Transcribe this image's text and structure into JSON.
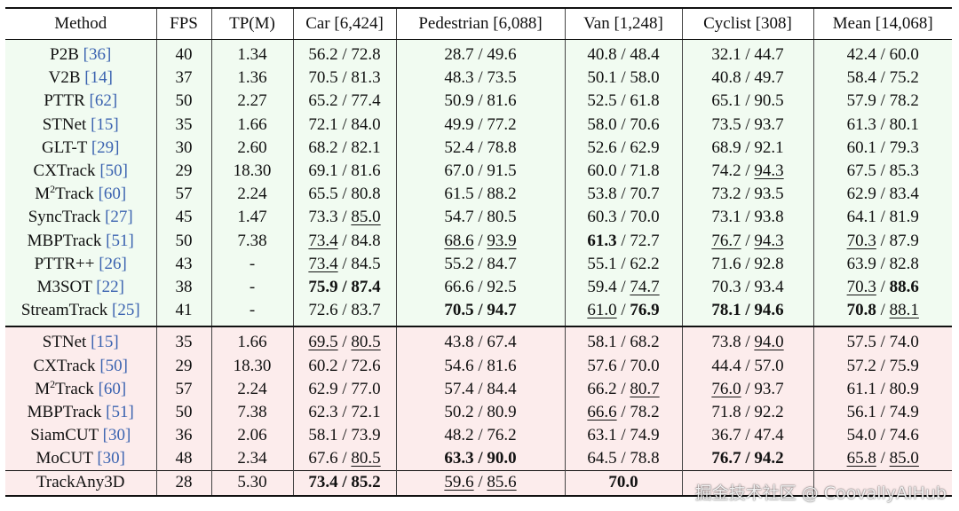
{
  "header": {
    "method": "Method",
    "fps": "FPS",
    "tp": "TP(M)",
    "car": "Car [6,424]",
    "pedestrian": "Pedestrian [6,088]",
    "van": "Van [1,248]",
    "cyclist": "Cyclist [308]",
    "mean": "Mean [14,068]"
  },
  "group1": [
    {
      "name": "P2B",
      "cite": "[36]",
      "fps": "40",
      "tp": "1.34",
      "car": [
        {
          "t": "56.2 / 72.8"
        }
      ],
      "ped": [
        {
          "t": "28.7 / 49.6"
        }
      ],
      "van": [
        {
          "t": "40.8 / 48.4"
        }
      ],
      "cyc": [
        {
          "t": "32.1 / 44.7"
        }
      ],
      "mean": [
        {
          "t": "42.4 / 60.0"
        }
      ]
    },
    {
      "name": "V2B",
      "cite": "[14]",
      "fps": "37",
      "tp": "1.36",
      "car": [
        {
          "t": "70.5 / 81.3"
        }
      ],
      "ped": [
        {
          "t": "48.3 / 73.5"
        }
      ],
      "van": [
        {
          "t": "50.1 / 58.0"
        }
      ],
      "cyc": [
        {
          "t": "40.8 / 49.7"
        }
      ],
      "mean": [
        {
          "t": "58.4 / 75.2"
        }
      ]
    },
    {
      "name": "PTTR",
      "cite": "[62]",
      "fps": "50",
      "tp": "2.27",
      "car": [
        {
          "t": "65.2 / 77.4"
        }
      ],
      "ped": [
        {
          "t": "50.9 / 81.6"
        }
      ],
      "van": [
        {
          "t": "52.5 / 61.8"
        }
      ],
      "cyc": [
        {
          "t": "65.1 / 90.5"
        }
      ],
      "mean": [
        {
          "t": "57.9 / 78.2"
        }
      ]
    },
    {
      "name": "STNet",
      "cite": "[15]",
      "fps": "35",
      "tp": "1.66",
      "car": [
        {
          "t": "72.1 / 84.0"
        }
      ],
      "ped": [
        {
          "t": "49.9 / 77.2"
        }
      ],
      "van": [
        {
          "t": "58.0 / 70.6"
        }
      ],
      "cyc": [
        {
          "t": "73.5 / 93.7"
        }
      ],
      "mean": [
        {
          "t": "61.3 / 80.1"
        }
      ]
    },
    {
      "name": "GLT-T",
      "cite": "[29]",
      "fps": "30",
      "tp": "2.60",
      "car": [
        {
          "t": "68.2 / 82.1"
        }
      ],
      "ped": [
        {
          "t": "52.4 / 78.8"
        }
      ],
      "van": [
        {
          "t": "52.6 / 62.9"
        }
      ],
      "cyc": [
        {
          "t": "68.9 / 92.1"
        }
      ],
      "mean": [
        {
          "t": "60.1 / 79.3"
        }
      ]
    },
    {
      "name": "CXTrack",
      "cite": "[50]",
      "fps": "29",
      "tp": "18.30",
      "car": [
        {
          "t": "69.1 / 81.6"
        }
      ],
      "ped": [
        {
          "t": "67.0 / 91.5"
        }
      ],
      "van": [
        {
          "t": "60.0 / 71.8"
        }
      ],
      "cyc": [
        {
          "t": "74.2 / "
        },
        {
          "t": "94.3",
          "s": "u"
        }
      ],
      "mean": [
        {
          "t": "67.5 / 85.3"
        }
      ]
    },
    {
      "name": "M",
      "sup": "2",
      "name2": "Track",
      "cite": "[60]",
      "fps": "57",
      "tp": "2.24",
      "car": [
        {
          "t": "65.5 / 80.8"
        }
      ],
      "ped": [
        {
          "t": "61.5 / 88.2"
        }
      ],
      "van": [
        {
          "t": "53.8 / 70.7"
        }
      ],
      "cyc": [
        {
          "t": "73.2 / 93.5"
        }
      ],
      "mean": [
        {
          "t": "62.9 / 83.4"
        }
      ]
    },
    {
      "name": "SyncTrack",
      "cite": "[27]",
      "fps": "45",
      "tp": "1.47",
      "car": [
        {
          "t": "73.3 / "
        },
        {
          "t": "85.0",
          "s": "u"
        }
      ],
      "ped": [
        {
          "t": "54.7 / 80.5"
        }
      ],
      "van": [
        {
          "t": "60.3 / 70.0"
        }
      ],
      "cyc": [
        {
          "t": "73.1 / 93.8"
        }
      ],
      "mean": [
        {
          "t": "64.1 / 81.9"
        }
      ]
    },
    {
      "name": "MBPTrack",
      "cite": "[51]",
      "fps": "50",
      "tp": "7.38",
      "car": [
        {
          "t": "73.4",
          "s": "u"
        },
        {
          "t": " / 84.8"
        }
      ],
      "ped": [
        {
          "t": "68.6",
          "s": "u"
        },
        {
          "t": " / "
        },
        {
          "t": "93.9",
          "s": "u"
        }
      ],
      "van": [
        {
          "t": "61.3",
          "s": "b"
        },
        {
          "t": " / 72.7"
        }
      ],
      "cyc": [
        {
          "t": "76.7",
          "s": "u"
        },
        {
          "t": " / "
        },
        {
          "t": "94.3",
          "s": "u"
        }
      ],
      "mean": [
        {
          "t": "70.3",
          "s": "u"
        },
        {
          "t": " / 87.9"
        }
      ]
    },
    {
      "name": "PTTR++",
      "cite": "[26]",
      "fps": "43",
      "tp": "-",
      "car": [
        {
          "t": "73.4",
          "s": "u"
        },
        {
          "t": " / 84.5"
        }
      ],
      "ped": [
        {
          "t": "55.2 / 84.7"
        }
      ],
      "van": [
        {
          "t": "55.1 / 62.2"
        }
      ],
      "cyc": [
        {
          "t": "71.6 / 92.8"
        }
      ],
      "mean": [
        {
          "t": "63.9 / 82.8"
        }
      ]
    },
    {
      "name": "M3SOT",
      "cite": "[22]",
      "fps": "38",
      "tp": "-",
      "car": [
        {
          "t": "75.9 / 87.4",
          "s": "b"
        }
      ],
      "ped": [
        {
          "t": "66.6 / 92.5"
        }
      ],
      "van": [
        {
          "t": "59.4 / "
        },
        {
          "t": "74.7",
          "s": "u"
        }
      ],
      "cyc": [
        {
          "t": "70.3 / 93.4"
        }
      ],
      "mean": [
        {
          "t": "70.3",
          "s": "u"
        },
        {
          "t": " / "
        },
        {
          "t": "88.6",
          "s": "b"
        }
      ]
    },
    {
      "name": "StreamTrack",
      "cite": "[25]",
      "fps": "41",
      "tp": "-",
      "car": [
        {
          "t": "72.6 / 83.7"
        }
      ],
      "ped": [
        {
          "t": "70.5 / 94.7",
          "s": "b"
        }
      ],
      "van": [
        {
          "t": "61.0",
          "s": "u"
        },
        {
          "t": " / "
        },
        {
          "t": "76.9",
          "s": "b"
        }
      ],
      "cyc": [
        {
          "t": "78.1 / 94.6",
          "s": "b"
        }
      ],
      "mean": [
        {
          "t": "70.8",
          "s": "b"
        },
        {
          "t": " / "
        },
        {
          "t": "88.1",
          "s": "u"
        }
      ]
    }
  ],
  "group2": [
    {
      "name": "STNet",
      "cite": "[15]",
      "fps": "35",
      "tp": "1.66",
      "car": [
        {
          "t": "69.5",
          "s": "u"
        },
        {
          "t": " / "
        },
        {
          "t": "80.5",
          "s": "u"
        }
      ],
      "ped": [
        {
          "t": "43.8 / 67.4"
        }
      ],
      "van": [
        {
          "t": "58.1 / 68.2"
        }
      ],
      "cyc": [
        {
          "t": "73.8 / "
        },
        {
          "t": "94.0",
          "s": "u"
        }
      ],
      "mean": [
        {
          "t": "57.5 / 74.0"
        }
      ]
    },
    {
      "name": "CXTrack",
      "cite": "[50]",
      "fps": "29",
      "tp": "18.30",
      "car": [
        {
          "t": "60.2 / 72.6"
        }
      ],
      "ped": [
        {
          "t": "54.6 / 81.6"
        }
      ],
      "van": [
        {
          "t": "57.6 / 70.0"
        }
      ],
      "cyc": [
        {
          "t": "44.4 / 57.0"
        }
      ],
      "mean": [
        {
          "t": "57.2 / 75.9"
        }
      ]
    },
    {
      "name": "M",
      "sup": "2",
      "name2": "Track",
      "cite": "[60]",
      "fps": "57",
      "tp": "2.24",
      "car": [
        {
          "t": "62.9 / 77.0"
        }
      ],
      "ped": [
        {
          "t": "57.4 / 84.4"
        }
      ],
      "van": [
        {
          "t": "66.2 / "
        },
        {
          "t": "80.7",
          "s": "u"
        }
      ],
      "cyc": [
        {
          "t": "76.0",
          "s": "u"
        },
        {
          "t": " / 93.7"
        }
      ],
      "mean": [
        {
          "t": "61.1 / 80.9"
        }
      ]
    },
    {
      "name": "MBPTrack",
      "cite": "[51]",
      "fps": "50",
      "tp": "7.38",
      "car": [
        {
          "t": "62.3 / 72.1"
        }
      ],
      "ped": [
        {
          "t": "50.2 / 80.9"
        }
      ],
      "van": [
        {
          "t": "66.6",
          "s": "u"
        },
        {
          "t": " / 78.2"
        }
      ],
      "cyc": [
        {
          "t": "71.8 / 92.2"
        }
      ],
      "mean": [
        {
          "t": "56.1 / 74.9"
        }
      ]
    },
    {
      "name": "SiamCUT",
      "cite": "[30]",
      "fps": "36",
      "tp": "2.06",
      "car": [
        {
          "t": "58.1 / 73.9"
        }
      ],
      "ped": [
        {
          "t": "48.2 / 76.2"
        }
      ],
      "van": [
        {
          "t": "63.1 / 74.9"
        }
      ],
      "cyc": [
        {
          "t": "36.7 / 47.4"
        }
      ],
      "mean": [
        {
          "t": "54.0 / 74.6"
        }
      ]
    },
    {
      "name": "MoCUT",
      "cite": "[30]",
      "fps": "48",
      "tp": "2.34",
      "car": [
        {
          "t": "67.6 / "
        },
        {
          "t": "80.5",
          "s": "u"
        }
      ],
      "ped": [
        {
          "t": "63.3 / 90.0",
          "s": "b"
        }
      ],
      "van": [
        {
          "t": "64.5 / 78.8"
        }
      ],
      "cyc": [
        {
          "t": "76.7 / 94.2",
          "s": "b"
        }
      ],
      "mean": [
        {
          "t": "65.8",
          "s": "u"
        },
        {
          "t": " / "
        },
        {
          "t": "85.0",
          "s": "u"
        }
      ]
    }
  ],
  "final": {
    "name": "TrackAny3D",
    "fps": "28",
    "tp": "5.30",
    "car": [
      {
        "t": "73.4 / 85.2",
        "s": "b"
      }
    ],
    "ped": [
      {
        "t": "59.6",
        "s": "u"
      },
      {
        "t": " / "
      },
      {
        "t": "85.6",
        "s": "u"
      }
    ],
    "van": [
      {
        "t": "70.0",
        "s": "b"
      }
    ],
    "cyc": [],
    "mean": []
  },
  "watermark": "掘金技术社区 @ CoovallyAIHub"
}
